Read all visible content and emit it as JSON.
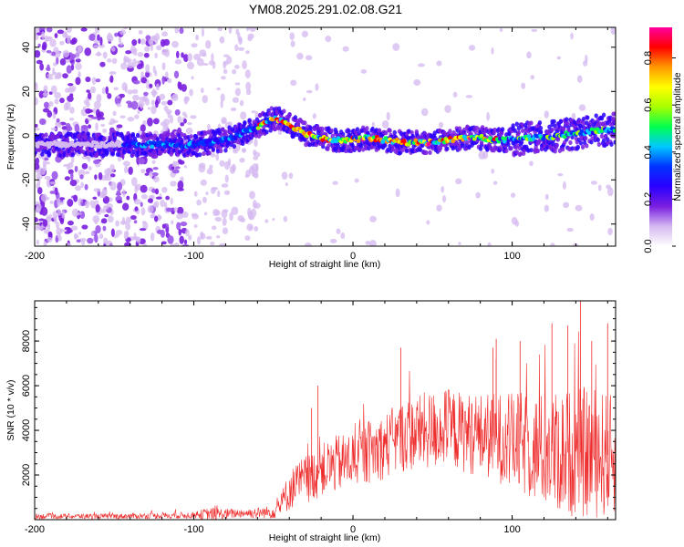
{
  "title": "YM08.2025.291.02.08.G21",
  "colors": {
    "snr_line": "#ee2b2b",
    "frame": "#000000"
  },
  "chart_data": [
    {
      "type": "heatmap",
      "name": "spectrogram",
      "title": "YM08.2025.291.02.08.G21",
      "xlabel": "Height of straight line (km)",
      "ylabel": "Frequency (Hz)",
      "xlim": [
        -200,
        165
      ],
      "ylim": [
        -50,
        49
      ],
      "xticks": [
        -200,
        -100,
        0,
        100
      ],
      "yticks": [
        -40,
        -20,
        0,
        20,
        40
      ],
      "colorbar": {
        "label": "Normalized spectral amplitude",
        "range": [
          0,
          0.93
        ],
        "ticks": [
          0,
          0.2,
          0.4,
          0.6,
          0.8
        ],
        "tick_labels": [
          "0.0",
          "0.2",
          "0.4",
          "0.6",
          "0.8"
        ],
        "colormap": [
          "#ffffff",
          "#d4b8f0",
          "#7a1ee0",
          "#2a00ff",
          "#0033ff",
          "#00c8ff",
          "#00ff50",
          "#a8ff00",
          "#ffff00",
          "#ff9900",
          "#ff0000",
          "#ff00a0"
        ]
      },
      "ridge": {
        "x": [
          -200,
          -180,
          -160,
          -140,
          -120,
          -100,
          -90,
          -80,
          -70,
          -60,
          -55,
          -50,
          -45,
          -40,
          -30,
          -20,
          -10,
          0,
          10,
          20,
          30,
          40,
          50,
          60,
          70,
          80,
          90,
          100,
          110,
          120,
          130,
          140,
          150,
          165
        ],
        "freq": [
          -4,
          -4,
          -4,
          -4,
          -4,
          -4,
          -3,
          -2,
          1,
          4,
          6,
          8,
          7,
          5,
          1,
          -1,
          -2,
          -2,
          -1,
          -2,
          -3,
          -3,
          -3,
          -2,
          -1,
          -1,
          -2,
          -2,
          -1,
          -1,
          0,
          1,
          2,
          3
        ]
      }
    },
    {
      "type": "line",
      "name": "snr",
      "xlabel": "Height of straight line (km)",
      "ylabel": "SNR (10 * v/v)",
      "xlim": [
        -200,
        165
      ],
      "ylim": [
        0,
        9800
      ],
      "xticks": [
        -200,
        -100,
        0,
        100
      ],
      "yticks": [
        2000,
        4000,
        6000,
        8000
      ],
      "envelope": {
        "x": [
          -200,
          -150,
          -100,
          -90,
          -80,
          -70,
          -60,
          -50,
          -45,
          -40,
          -35,
          -30,
          -20,
          -10,
          0,
          10,
          20,
          30,
          40,
          50,
          60,
          70,
          80,
          90,
          100,
          110,
          120,
          130,
          140,
          150,
          160,
          165
        ],
        "mean": [
          150,
          150,
          200,
          250,
          250,
          300,
          300,
          350,
          700,
          1300,
          1600,
          1800,
          2200,
          2500,
          2700,
          3000,
          3300,
          3700,
          3900,
          4000,
          4100,
          3900,
          3800,
          3700,
          3500,
          3300,
          3100,
          3000,
          3000,
          3000,
          2900,
          2800
        ],
        "amp": [
          120,
          120,
          150,
          300,
          250,
          200,
          250,
          300,
          600,
          900,
          1000,
          1100,
          1200,
          1300,
          1300,
          1400,
          1500,
          1600,
          1700,
          1800,
          1800,
          1800,
          1900,
          2000,
          2200,
          2400,
          2600,
          2800,
          2900,
          3000,
          2800,
          2700
        ]
      },
      "peaks": [
        {
          "x": -22,
          "y": 6000
        },
        {
          "x": -26,
          "y": 5000
        },
        {
          "x": 30,
          "y": 7700
        },
        {
          "x": 90,
          "y": 8100
        },
        {
          "x": 88,
          "y": 7700
        },
        {
          "x": 90,
          "y": 7200
        },
        {
          "x": 105,
          "y": 8000
        },
        {
          "x": 125,
          "y": 8800
        },
        {
          "x": 135,
          "y": 8700
        },
        {
          "x": 143,
          "y": 9800
        },
        {
          "x": 150,
          "y": 8000
        },
        {
          "x": 160,
          "y": 8800
        }
      ]
    }
  ]
}
